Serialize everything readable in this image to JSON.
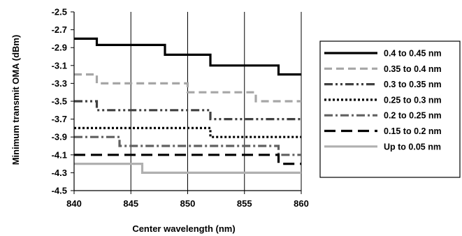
{
  "chart_data": {
    "type": "line",
    "step": true,
    "xlabel": "Center wavelength (nm)",
    "ylabel": "Minimum transmit OMA (dBm)",
    "xlim": [
      840,
      860
    ],
    "ylim": [
      -4.5,
      -2.5
    ],
    "xticks": [
      840,
      845,
      850,
      855,
      860
    ],
    "yticks": [
      -2.5,
      -2.7,
      -2.9,
      -3.1,
      -3.3,
      -3.5,
      -3.7,
      -3.9,
      -4.1,
      -4.3,
      -4.5
    ],
    "ytick_labels": [
      "-2.5",
      "-2.7",
      "-2.9",
      "-3.1",
      "-3.3",
      "-3.5",
      "-3.7",
      "-3.9",
      "-4.1",
      "-4.3",
      "-4.5"
    ],
    "grid": "vertical",
    "legend": "right",
    "series": [
      {
        "name": "0.4 to 0.45 nm",
        "color": "#000000",
        "style": "solid",
        "x": [
          840,
          842,
          842,
          848,
          848,
          852,
          852,
          858,
          858,
          860
        ],
        "y": [
          -2.8,
          -2.8,
          -2.87,
          -2.87,
          -2.98,
          -2.98,
          -3.1,
          -3.1,
          -3.2,
          -3.2
        ]
      },
      {
        "name": "0.35 to 0.4 nm",
        "color": "#a6a6a6",
        "style": "dash",
        "x": [
          840,
          842,
          842,
          850,
          850,
          856,
          856,
          860
        ],
        "y": [
          -3.2,
          -3.2,
          -3.3,
          -3.3,
          -3.4,
          -3.4,
          -3.5,
          -3.5
        ]
      },
      {
        "name": "0.3 to 0.35 nm",
        "color": "#404040",
        "style": "dashdotdot",
        "x": [
          840,
          842,
          842,
          852,
          852,
          860
        ],
        "y": [
          -3.5,
          -3.5,
          -3.6,
          -3.6,
          -3.7,
          -3.7
        ]
      },
      {
        "name": "0.25 to 0.3 nm",
        "color": "#000000",
        "style": "dot",
        "x": [
          840,
          852,
          852,
          860
        ],
        "y": [
          -3.8,
          -3.8,
          -3.9,
          -3.9
        ]
      },
      {
        "name": "0.2 to 0.25 nm",
        "color": "#606060",
        "style": "dashdot",
        "x": [
          840,
          844,
          844,
          858,
          858,
          860
        ],
        "y": [
          -3.9,
          -3.9,
          -4.0,
          -4.0,
          -4.1,
          -4.1
        ]
      },
      {
        "name": "0.15 to 0.2 nm",
        "color": "#000000",
        "style": "longdash",
        "x": [
          840,
          858,
          858,
          860
        ],
        "y": [
          -4.1,
          -4.1,
          -4.2,
          -4.2
        ]
      },
      {
        "name": "Up to 0.05 nm",
        "color": "#b0b0b0",
        "style": "solid",
        "x": [
          840,
          846,
          846,
          860
        ],
        "y": [
          -4.2,
          -4.2,
          -4.3,
          -4.3
        ]
      }
    ]
  }
}
